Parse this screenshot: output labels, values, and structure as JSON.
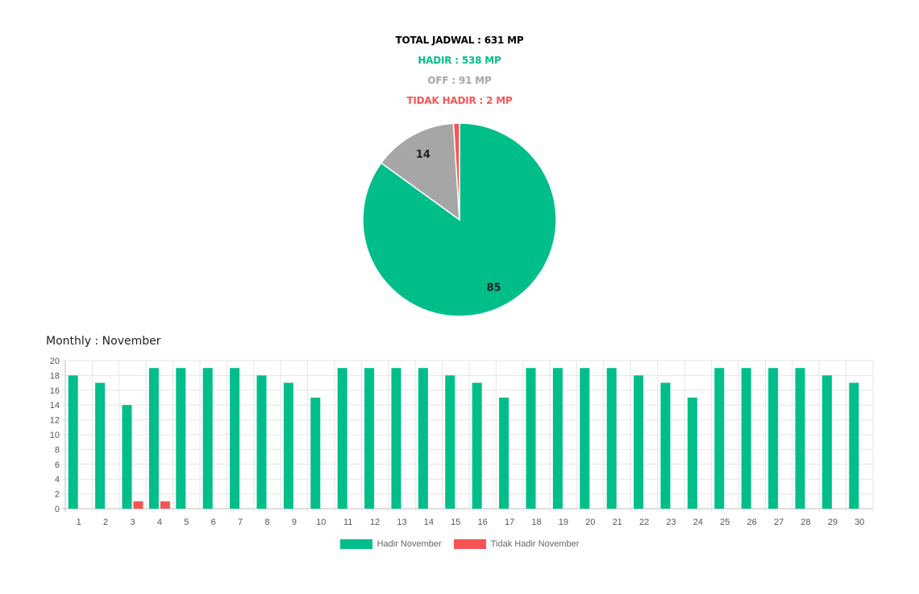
{
  "summary": {
    "total": "TOTAL JADWAL : 631 MP",
    "hadir": "HADIR : 538 MP",
    "off": "OFF : 91 MP",
    "tidak_hadir": "TIDAK HADIR : 2 MP"
  },
  "colors": {
    "total": "#000000",
    "hadir": "#00BE8A",
    "off": "#A6A6A6",
    "tidak_hadir": "#F75555"
  },
  "monthly": {
    "title": "Monthly : November"
  },
  "chart_data": [
    {
      "type": "pie",
      "slices": [
        {
          "label": "85",
          "value": 85,
          "color": "#00BE8A"
        },
        {
          "label": "14",
          "value": 14,
          "color": "#A6A6A6"
        },
        {
          "label": "",
          "value": 1,
          "color": "#F75555"
        }
      ]
    },
    {
      "type": "bar",
      "categories": [
        "1",
        "2",
        "3",
        "4",
        "5",
        "6",
        "7",
        "8",
        "9",
        "10",
        "11",
        "12",
        "13",
        "14",
        "15",
        "16",
        "17",
        "18",
        "19",
        "20",
        "21",
        "22",
        "23",
        "24",
        "25",
        "26",
        "27",
        "28",
        "29",
        "30"
      ],
      "series": [
        {
          "name": "Hadir November",
          "color": "#00BE8A",
          "values": [
            18,
            17,
            14,
            19,
            19,
            19,
            19,
            18,
            17,
            15,
            19,
            19,
            19,
            19,
            18,
            17,
            15,
            19,
            19,
            19,
            19,
            18,
            17,
            15,
            19,
            19,
            19,
            19,
            18,
            17
          ]
        },
        {
          "name": "Tidak Hadir November",
          "color": "#F75555",
          "values": [
            0,
            0,
            1,
            1,
            0,
            0,
            0,
            0,
            0,
            0,
            0,
            0,
            0,
            0,
            0,
            0,
            0,
            0,
            0,
            0,
            0,
            0,
            0,
            0,
            0,
            0,
            0,
            0,
            0,
            0
          ]
        }
      ],
      "ylim": [
        0,
        20
      ],
      "yticks": [
        "0",
        "2",
        "4",
        "6",
        "8",
        "10",
        "12",
        "14",
        "16",
        "18",
        "20"
      ],
      "grid": true,
      "legend": "bottom-center"
    }
  ]
}
